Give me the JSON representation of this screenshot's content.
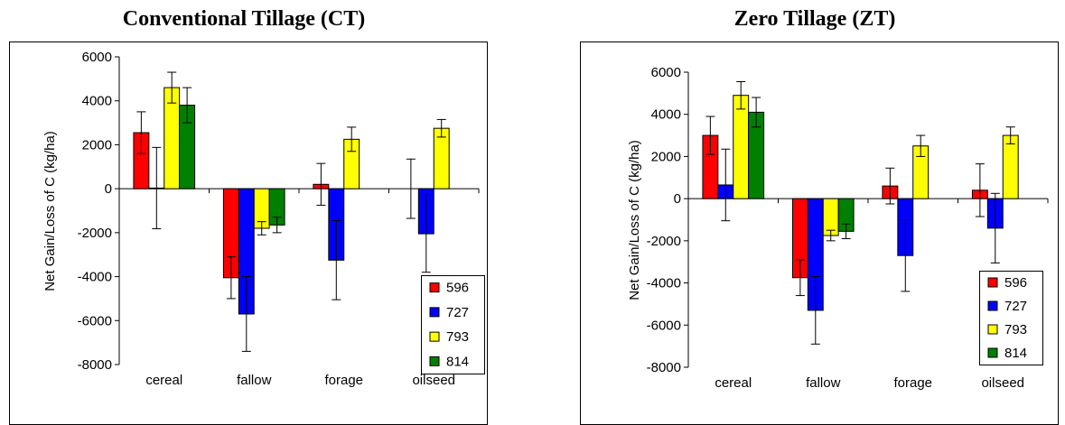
{
  "chart_data": [
    {
      "type": "bar",
      "title": "Conventional Tillage (CT)",
      "ylabel": "Net Gain/Loss of C (kg/ha)",
      "xlabel": "",
      "categories": [
        "cereal",
        "fallow",
        "forage",
        "oilseed"
      ],
      "ylim": [
        -8000,
        6000
      ],
      "yticks": [
        6000,
        4000,
        2000,
        0,
        -2000,
        -4000,
        -6000,
        -8000
      ],
      "legend_position": "bottom-right",
      "grid": false,
      "series": [
        {
          "name": "596",
          "color": "#ff0000",
          "values": [
            2550,
            -4050,
            200,
            null
          ],
          "error": [
            950,
            950,
            950,
            1350
          ]
        },
        {
          "name": "727",
          "color": "#0000ff",
          "values": [
            30,
            -5700,
            -3250,
            -2050
          ],
          "error": [
            1850,
            1700,
            1800,
            1750
          ]
        },
        {
          "name": "793",
          "color": "#ffff00",
          "values": [
            4600,
            -1800,
            2250,
            2750
          ],
          "error": [
            700,
            300,
            550,
            400
          ]
        },
        {
          "name": "814",
          "color": "#008000",
          "values": [
            3800,
            -1650,
            null,
            null
          ],
          "error": [
            800,
            350,
            0,
            0
          ]
        }
      ]
    },
    {
      "type": "bar",
      "title": "Zero Tillage (ZT)",
      "ylabel": "Net Gain/Loss of C (kg/ha)",
      "xlabel": "",
      "categories": [
        "cereal",
        "fallow",
        "forage",
        "oilseed"
      ],
      "ylim": [
        -8000,
        6000
      ],
      "yticks": [
        6000,
        4000,
        2000,
        0,
        -2000,
        -4000,
        -6000,
        -8000
      ],
      "legend_position": "bottom-right",
      "grid": false,
      "series": [
        {
          "name": "596",
          "color": "#ff0000",
          "values": [
            3000,
            -3750,
            600,
            400
          ],
          "error": [
            900,
            850,
            850,
            1250
          ]
        },
        {
          "name": "727",
          "color": "#0000ff",
          "values": [
            650,
            -5300,
            -2700,
            -1400
          ],
          "error": [
            1700,
            1600,
            1700,
            1650
          ]
        },
        {
          "name": "793",
          "color": "#ffff00",
          "values": [
            4900,
            -1750,
            2500,
            3000
          ],
          "error": [
            650,
            250,
            500,
            400
          ]
        },
        {
          "name": "814",
          "color": "#008000",
          "values": [
            4100,
            -1550,
            null,
            null
          ],
          "error": [
            700,
            350,
            0,
            0
          ]
        }
      ]
    }
  ]
}
